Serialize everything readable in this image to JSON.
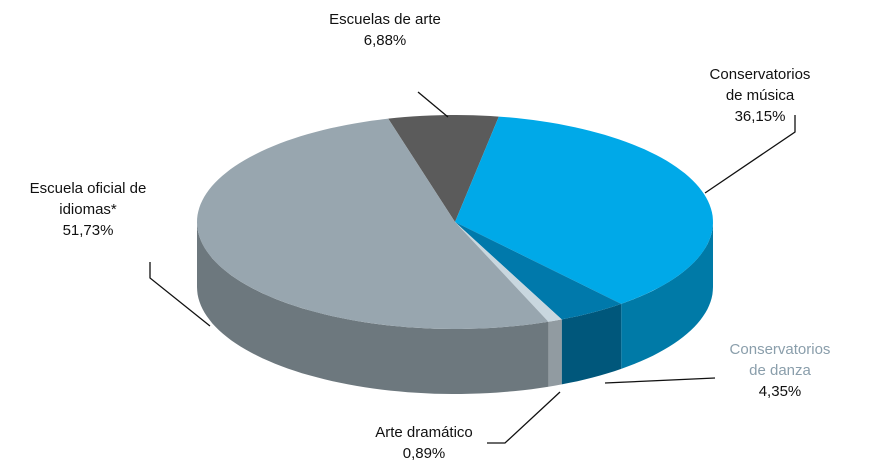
{
  "chart_data": {
    "type": "pie",
    "categories": [
      "Escuelas de arte",
      "Conservatorios de música",
      "Conservatorios de danza",
      "Arte dramático",
      "Escuela oficial de idiomas*"
    ],
    "values": [
      6.88,
      36.15,
      4.35,
      0.89,
      51.73
    ],
    "value_labels": [
      "6,88%",
      "36,15%",
      "4,35%",
      "0,89%",
      "51,73%"
    ],
    "colors": [
      "#5b5b5b",
      "#00a9e8",
      "#0079ab",
      "#c9d7df",
      "#98a6af"
    ]
  }
}
